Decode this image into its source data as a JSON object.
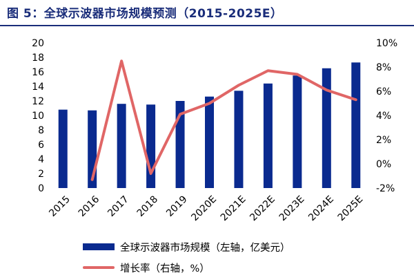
{
  "title": "图 5：全球示波器市场规模预测（2015-2025E）",
  "colors": {
    "title": "#1a2d7a",
    "bar": "#0a2a8f",
    "line": "#e06666"
  },
  "chart_data": {
    "type": "bar",
    "categories": [
      "2015",
      "2016",
      "2017",
      "2018",
      "2019",
      "2020E",
      "2021E",
      "2022E",
      "2023E",
      "2024E",
      "2025E"
    ],
    "series": [
      {
        "name": "全球示波器市场规模（左轴，亿美元）",
        "type": "bar",
        "axis": "left",
        "values": [
          10.8,
          10.7,
          11.6,
          11.5,
          12.0,
          12.6,
          13.4,
          14.4,
          15.5,
          16.5,
          17.3
        ]
      },
      {
        "name": "增长率（右轴，%）",
        "type": "line",
        "axis": "right",
        "values": [
          null,
          -1.3,
          8.5,
          -0.8,
          4.1,
          5.0,
          6.5,
          7.7,
          7.4,
          6.1,
          5.3
        ]
      }
    ],
    "y_left": {
      "min": 0,
      "max": 20,
      "ticks": [
        "0",
        "2",
        "4",
        "6",
        "8",
        "10",
        "12",
        "14",
        "16",
        "18",
        "20"
      ]
    },
    "y_right": {
      "min": -2,
      "max": 10,
      "ticks": [
        "-2%",
        "0%",
        "2%",
        "4%",
        "6%",
        "8%",
        "10%"
      ]
    },
    "grid": false,
    "legend_position": "bottom"
  }
}
